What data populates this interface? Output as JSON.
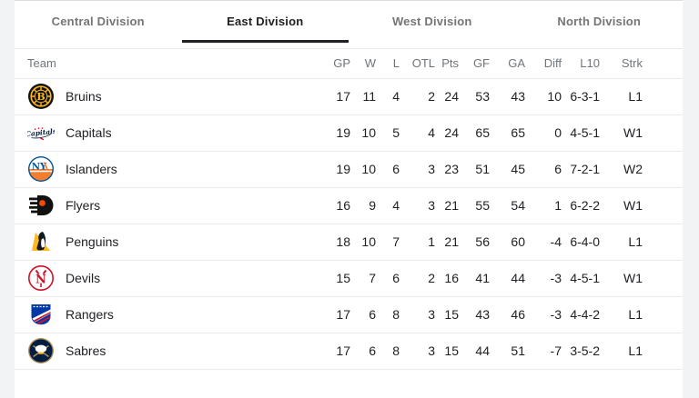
{
  "tabs": [
    {
      "label": "Central Division",
      "active": false
    },
    {
      "label": "East Division",
      "active": true
    },
    {
      "label": "West Division",
      "active": false
    },
    {
      "label": "North Division",
      "active": false
    }
  ],
  "table": {
    "columns": [
      "Team",
      "GP",
      "W",
      "L",
      "OTL",
      "Pts",
      "GF",
      "GA",
      "Diff",
      "L10",
      "Strk"
    ],
    "rows": [
      {
        "team": "Bruins",
        "logo": "bruins",
        "values": [
          "17",
          "11",
          "4",
          "2",
          "24",
          "53",
          "43",
          "10",
          "6-3-1",
          "L1"
        ]
      },
      {
        "team": "Capitals",
        "logo": "capitals",
        "values": [
          "19",
          "10",
          "5",
          "4",
          "24",
          "65",
          "65",
          "0",
          "4-5-1",
          "W1"
        ]
      },
      {
        "team": "Islanders",
        "logo": "islanders",
        "values": [
          "19",
          "10",
          "6",
          "3",
          "23",
          "51",
          "45",
          "6",
          "7-2-1",
          "W2"
        ]
      },
      {
        "team": "Flyers",
        "logo": "flyers",
        "values": [
          "16",
          "9",
          "4",
          "3",
          "21",
          "55",
          "54",
          "1",
          "6-2-2",
          "W1"
        ]
      },
      {
        "team": "Penguins",
        "logo": "penguins",
        "values": [
          "18",
          "10",
          "7",
          "1",
          "21",
          "56",
          "60",
          "-4",
          "6-4-0",
          "L1"
        ]
      },
      {
        "team": "Devils",
        "logo": "devils",
        "values": [
          "15",
          "7",
          "6",
          "2",
          "16",
          "41",
          "44",
          "-3",
          "4-5-1",
          "W1"
        ]
      },
      {
        "team": "Rangers",
        "logo": "rangers",
        "values": [
          "17",
          "6",
          "8",
          "3",
          "15",
          "43",
          "46",
          "-3",
          "4-4-2",
          "L1"
        ]
      },
      {
        "team": "Sabres",
        "logo": "sabres",
        "values": [
          "17",
          "6",
          "8",
          "3",
          "15",
          "44",
          "51",
          "-7",
          "3-5-2",
          "L1"
        ]
      }
    ]
  },
  "colors": {
    "page_background": "#f1f3f4",
    "card_background": "#ffffff",
    "active_tab_text": "#202124",
    "inactive_tab_text": "#757575",
    "active_tab_underline": "#202124",
    "divider": "#e8eaed",
    "header_text": "#70757a",
    "cell_text": "#202124"
  }
}
